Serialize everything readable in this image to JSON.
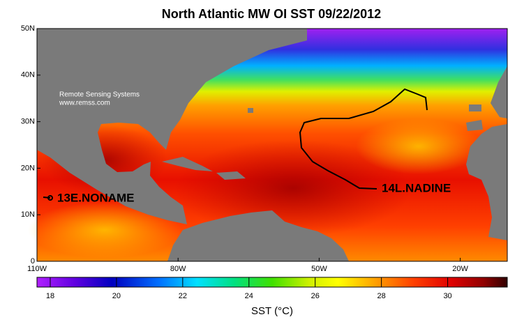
{
  "title": "North Atlantic MW OI SST 09/22/2012",
  "map": {
    "lon_lim": [
      -110,
      -10
    ],
    "lon_ticks": [
      {
        "value": -110,
        "label": "110W"
      },
      {
        "value": -80,
        "label": "80W"
      },
      {
        "value": -50,
        "label": "50W"
      },
      {
        "value": -20,
        "label": "20W"
      }
    ],
    "lat_lim": [
      0,
      50
    ],
    "lat_ticks": [
      0,
      {
        "value": 10,
        "label": "10N"
      },
      {
        "value": 20,
        "label": "20N"
      },
      {
        "value": 30,
        "label": "30N"
      },
      {
        "value": 40,
        "label": "40N"
      },
      {
        "value": 50,
        "label": "50N"
      }
    ]
  },
  "credit": [
    "Remote Sensing Systems",
    "www.remss.com"
  ],
  "storms": [
    "14L.NADINE",
    "13E.NONAME"
  ],
  "colorbar": {
    "label": "SST (°C)",
    "lim": [
      17.6,
      31.8
    ],
    "ticks": [
      18,
      20,
      22,
      24,
      26,
      28,
      30
    ]
  }
}
